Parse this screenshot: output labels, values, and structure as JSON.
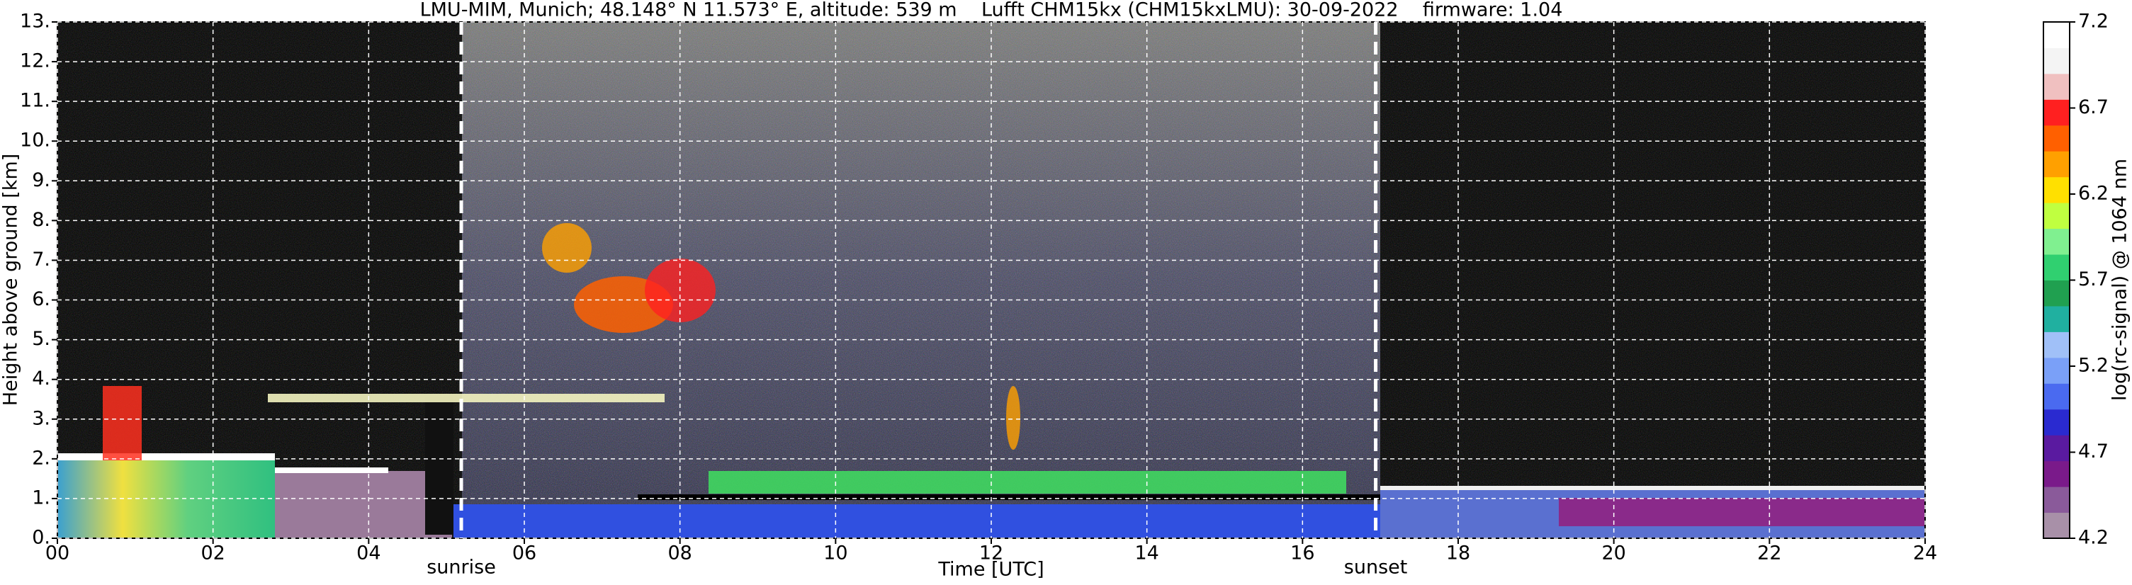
{
  "chart_data": {
    "type": "heatmap",
    "title": "LMU-MIM, Munich; 48.148° N 11.573° E, altitude: 539 m    Lufft CHM15kx (CHM15kxLMU): 30-09-2022    firmware: 1.04",
    "x_label": "Time [UTC]",
    "y_label": "Height above ground [km]",
    "colorbar_label": "log(rc-signal) @ 1064 nm",
    "xlim": [
      0,
      24
    ],
    "xticks": [
      {
        "value": 0,
        "label": "00"
      },
      {
        "value": 2,
        "label": "02"
      },
      {
        "value": 4,
        "label": "04"
      },
      {
        "value": 6,
        "label": "06"
      },
      {
        "value": 8,
        "label": "08"
      },
      10,
      12,
      14,
      16,
      18,
      20,
      22,
      24
    ],
    "ylim": [
      0,
      13
    ],
    "yticks": [
      {
        "value": 0,
        "label": "0."
      },
      {
        "value": 1,
        "label": "1."
      },
      {
        "value": 2,
        "label": "2."
      },
      {
        "value": 3,
        "label": "3."
      },
      {
        "value": 4,
        "label": "4."
      },
      {
        "value": 5,
        "label": "5."
      },
      {
        "value": 6,
        "label": "6."
      },
      {
        "value": 7,
        "label": "7."
      },
      {
        "value": 8,
        "label": "8."
      },
      {
        "value": 9,
        "label": "9."
      },
      {
        "value": 10,
        "label": "10."
      },
      {
        "value": 11,
        "label": "11."
      },
      {
        "value": 12,
        "label": "12."
      },
      {
        "value": 13,
        "label": "13."
      }
    ],
    "clim": [
      4.2,
      7.2
    ],
    "cticks": [
      4.2,
      4.7,
      5.2,
      5.7,
      6.2,
      6.7,
      7.2
    ],
    "colorscale": [
      "#a890a8",
      "#8a5a9a",
      "#7a1a8a",
      "#5a1aa0",
      "#2a2ad0",
      "#4a6af0",
      "#7aa0f8",
      "#a0c0f8",
      "#20b0a0",
      "#20a050",
      "#30d070",
      "#80f090",
      "#c0ff40",
      "#ffe000",
      "#ffa000",
      "#ff6000",
      "#ff2020",
      "#f0c0c0",
      "#f4f4f4",
      "#ffffff"
    ],
    "grid": true,
    "annotations": [
      {
        "text": "sunrise",
        "x": 5.19
      },
      {
        "text": "sunset",
        "x": 16.94
      }
    ]
  }
}
